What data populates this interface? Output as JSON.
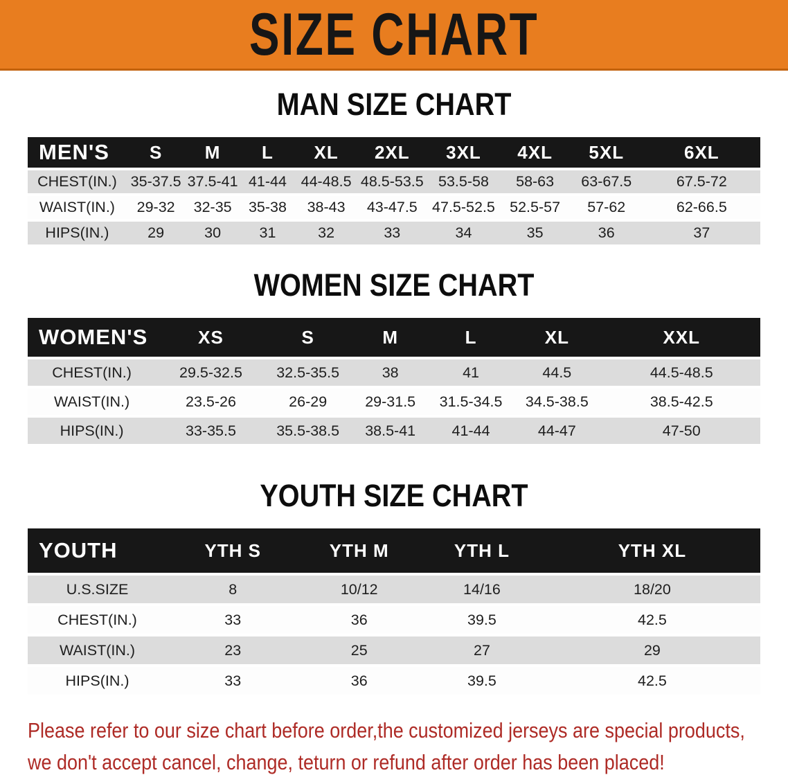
{
  "banner": {
    "title": "SIZE CHART"
  },
  "sections": [
    {
      "heading": "MAN SIZE CHART",
      "table": {
        "name": "MEN'S",
        "columns": [
          "S",
          "M",
          "L",
          "XL",
          "2XL",
          "3XL",
          "4XL",
          "5XL",
          "6XL"
        ],
        "rows": [
          {
            "label": "CHEST(IN.)",
            "values": [
              "35-37.5",
              "37.5-41",
              "41-44",
              "44-48.5",
              "48.5-53.5",
              "53.5-58",
              "58-63",
              "63-67.5",
              "67.5-72"
            ]
          },
          {
            "label": "WAIST(IN.)",
            "values": [
              "29-32",
              "32-35",
              "35-38",
              "38-43",
              "43-47.5",
              "47.5-52.5",
              "52.5-57",
              "57-62",
              "62-66.5"
            ]
          },
          {
            "label": "HIPS(IN.)",
            "values": [
              "29",
              "30",
              "31",
              "32",
              "33",
              "34",
              "35",
              "36",
              "37"
            ]
          }
        ]
      }
    },
    {
      "heading": "WOMEN SIZE CHART",
      "table": {
        "name": "WOMEN'S",
        "columns": [
          "XS",
          "S",
          "M",
          "L",
          "XL",
          "XXL"
        ],
        "rows": [
          {
            "label": "CHEST(IN.)",
            "values": [
              "29.5-32.5",
              "32.5-35.5",
              "38",
              "41",
              "44.5",
              "44.5-48.5"
            ]
          },
          {
            "label": "WAIST(IN.)",
            "values": [
              "23.5-26",
              "26-29",
              "29-31.5",
              "31.5-34.5",
              "34.5-38.5",
              "38.5-42.5"
            ]
          },
          {
            "label": "HIPS(IN.)",
            "values": [
              "33-35.5",
              "35.5-38.5",
              "38.5-41",
              "41-44",
              "44-47",
              "47-50"
            ]
          }
        ]
      }
    },
    {
      "heading": "YOUTH SIZE CHART",
      "table": {
        "name": "YOUTH",
        "columns": [
          "YTH S",
          "YTH M",
          "YTH L",
          "YTH XL"
        ],
        "rows": [
          {
            "label": "U.S.SIZE",
            "values": [
              "8",
              "10/12",
              "14/16",
              "18/20"
            ]
          },
          {
            "label": "CHEST(IN.)",
            "values": [
              "33",
              "36",
              "39.5",
              "42.5"
            ]
          },
          {
            "label": "WAIST(IN.)",
            "values": [
              "23",
              "25",
              "27",
              "29"
            ]
          },
          {
            "label": "HIPS(IN.)",
            "values": [
              "33",
              "36",
              "39.5",
              "42.5"
            ]
          }
        ]
      }
    }
  ],
  "footer_note": {
    "line1": "Please refer to our size chart before order,the customized jerseys are special products,",
    "line2": "we don't accept cancel, change, teturn or refund after order has been placed!"
  },
  "colors": {
    "banner_bg": "#e87d1f",
    "banner_edge": "#c2620d",
    "title_color": "#161616",
    "table_header_bg": "#171717",
    "table_header_text": "#ffffff",
    "row_stripe": "#dcdcdc",
    "row_alt": "#fdfdfd",
    "text_color": "#1e1e1e",
    "note_color": "#ae2b26"
  }
}
